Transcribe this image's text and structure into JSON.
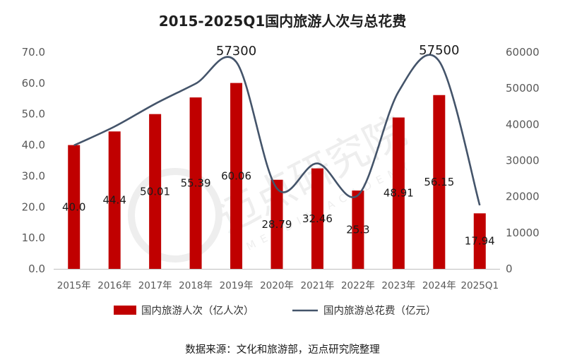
{
  "chart_data": {
    "type": "bar",
    "title": "2015-2025Q1国内旅游人次与总花费",
    "categories": [
      "2015年",
      "2016年",
      "2017年",
      "2018年",
      "2019年",
      "2020年",
      "2021年",
      "2022年",
      "2023年",
      "2024年",
      "2025Q1"
    ],
    "series": [
      {
        "name": "国内旅游人次（亿人次）",
        "type": "bar",
        "axis": "left",
        "values": [
          40.0,
          44.4,
          50.01,
          55.39,
          60.06,
          28.79,
          32.46,
          25.3,
          48.91,
          56.15,
          17.94
        ],
        "labels": [
          "40.0",
          "44.4",
          "50.01",
          "55.39",
          "60.06",
          "28.79",
          "32.46",
          "25.3",
          "48.91",
          "56.15",
          "17.94"
        ]
      },
      {
        "name": "国内旅游总花费（亿元）",
        "type": "line",
        "axis": "right",
        "values": [
          34200,
          39400,
          45700,
          51300,
          57300,
          22300,
          29200,
          20400,
          49100,
          57500,
          17600
        ],
        "point_labels": {
          "4": "57300",
          "9": "57500"
        }
      }
    ],
    "y_left": {
      "ticks": [
        "0.0",
        "10.0",
        "20.0",
        "30.0",
        "40.0",
        "50.0",
        "60.0",
        "70.0"
      ],
      "ylim": [
        0,
        70
      ]
    },
    "y_right": {
      "ticks": [
        "0",
        "10000",
        "20000",
        "30000",
        "40000",
        "50000",
        "60000"
      ],
      "ylim": [
        0,
        60000
      ]
    },
    "grid": false,
    "legend": "bottom",
    "colors": {
      "bar": "#c00000",
      "line": "#44546a"
    }
  },
  "watermark": {
    "text": "迈点研究院",
    "subtext": "MEADIN ACADEMY"
  },
  "source_note": "数据来源：文化和旅游部，迈点研究院整理"
}
